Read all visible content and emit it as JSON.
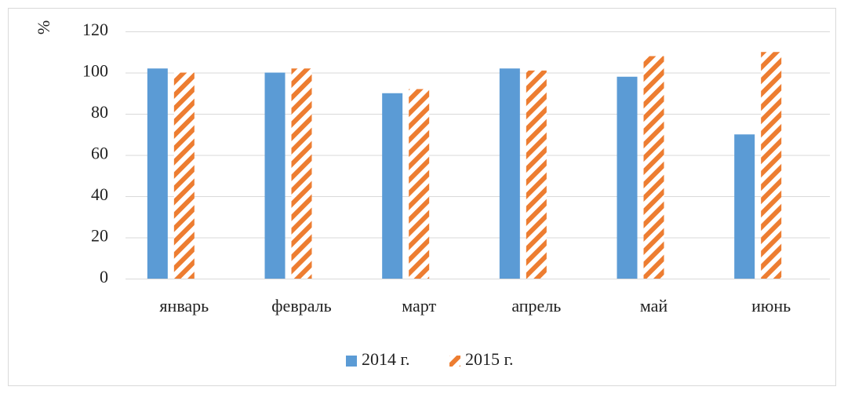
{
  "chart_data": {
    "type": "bar",
    "ylabel": "%",
    "categories": [
      "январь",
      "февраль",
      "март",
      "апрель",
      "май",
      "июнь"
    ],
    "series": [
      {
        "name": "2014 г.",
        "color": "#5b9bd5",
        "values": [
          102,
          100,
          90,
          102,
          98,
          70
        ]
      },
      {
        "name": "2015 г.",
        "color": "#ed7d31",
        "hatch": true,
        "values": [
          100,
          102,
          92,
          101,
          108,
          110
        ]
      }
    ],
    "ylim": [
      0,
      120
    ],
    "yticks": [
      0,
      20,
      40,
      60,
      80,
      100,
      120
    ],
    "grid": true,
    "legend": "bottom"
  }
}
